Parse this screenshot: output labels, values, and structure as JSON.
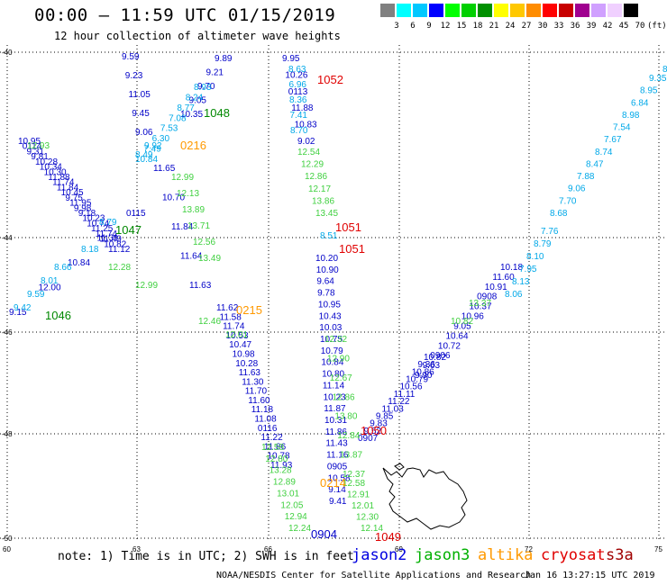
{
  "header": {
    "title": "00:00 – 11:59 UTC 01/15/2019",
    "subtitle": "12 hour collection of altimeter wave heights"
  },
  "legend": {
    "unit": "(ft)",
    "labels": [
      "3",
      "6",
      "9",
      "12",
      "15",
      "18",
      "21",
      "24",
      "27",
      "30",
      "33",
      "36",
      "39",
      "42",
      "45",
      "70"
    ],
    "colors": [
      "#808080",
      "#00ffff",
      "#00c8ff",
      "#0000ff",
      "#00ff00",
      "#00d000",
      "#009000",
      "#ffff00",
      "#ffc800",
      "#ff8c00",
      "#ff0000",
      "#c80000",
      "#a00090",
      "#d0a0ff",
      "#f0d0ff",
      "#000000"
    ]
  },
  "axes": {
    "lat_labels": [
      "-40",
      "-44",
      "-46",
      "-48",
      "-50"
    ],
    "lon_labels": [
      "60",
      "63",
      "66",
      "69",
      "72",
      "75"
    ]
  },
  "track_values": {
    "blue": [
      "9.59",
      "9.23",
      "11.05",
      "9.45",
      "9.06",
      "9.89",
      "9.21",
      "9.70",
      "9.05",
      "10.35",
      "9.95",
      "10.26",
      "0113",
      "11.88",
      "10.83",
      "9.02",
      "10.95",
      "0114",
      "9.31",
      "9.81",
      "10.28",
      "10.34",
      "10.30",
      "11.88",
      "11.74",
      "11.84",
      "10.45",
      "9.75",
      "11.95",
      "9.98",
      "9.18",
      "10.23",
      "10.74",
      "11.25",
      "11.74",
      "11.49",
      "10.82",
      "11.12",
      "9.15",
      "12.00",
      "10.84",
      "11.31",
      "0115",
      "11.65",
      "10.70",
      "11.84",
      "11.64",
      "11.63",
      "11.62",
      "11.58",
      "11.74",
      "10.53",
      "10.47",
      "10.98",
      "10.28",
      "11.63",
      "11.30",
      "11.70",
      "11.60",
      "11.18",
      "11.08",
      "0116",
      "11.22",
      "11.86",
      "10.78",
      "11.93",
      "10.20",
      "10.90",
      "9.64",
      "9.78",
      "10.95",
      "10.43",
      "10.03",
      "10.75",
      "10.79",
      "10.84",
      "10.80",
      "11.14",
      "10.23",
      "11.87",
      "10.31",
      "11.86",
      "11.43",
      "11.16",
      "0905",
      "10.58",
      "9.14",
      "9.41",
      "0907",
      "9.52",
      "9.83",
      "9.85",
      "11.03",
      "11.22",
      "11.11",
      "10.56",
      "10.79",
      "10.86",
      "9.36",
      "10.82",
      "9.90",
      "9.63",
      "0906",
      "10.72",
      "10.64",
      "9.05",
      "10.96",
      "10.37",
      "0908",
      "10.91",
      "11.60",
      "10.18"
    ],
    "cyan": [
      "8.63",
      "6.96",
      "8.36",
      "7.41",
      "8.70",
      "8.93",
      "8.24",
      "8.77",
      "7.08",
      "7.53",
      "6.30",
      "7.49",
      "10.84",
      "8.66",
      "8.01",
      "9.59",
      "9.42",
      "8.18",
      "8.79",
      "8.51",
      "8.06",
      "8.13",
      "7.95",
      "8.10",
      "8.79",
      "7.76",
      "8.68",
      "7.70",
      "9.06",
      "7.88",
      "8.47",
      "8.74",
      "7.67",
      "7.54",
      "8.98",
      "6.84",
      "8.95",
      "9.35",
      "8.49",
      "9.92",
      "8.62",
      "10.03"
    ],
    "green": [
      "12.54",
      "12.29",
      "12.86",
      "12.17",
      "13.86",
      "13.45",
      "12.99",
      "12.13",
      "13.89",
      "13.71",
      "12.56",
      "13.49",
      "12.28",
      "12.99",
      "12.46",
      "12.01",
      "12.32",
      "12.90",
      "12.67",
      "12.86",
      "13.80",
      "12.84",
      "13.87",
      "12.37",
      "12.58",
      "12.80",
      "13.28",
      "12.89",
      "13.01",
      "12.05",
      "12.94",
      "12.24",
      "12.58",
      "12.91",
      "12.01",
      "12.30",
      "12.14",
      "10.82",
      "13.37",
      "12.93"
    ],
    "cycles": [
      "1052",
      "1048",
      "1047",
      "1046",
      "1051",
      "1051",
      "1050",
      "1049",
      "0216",
      "0215",
      "0214",
      "0904"
    ]
  },
  "notes": {
    "note_text": "note: 1) Time is in UTC; 2) SWH is in feet",
    "missions": [
      {
        "name": "jason2",
        "color": "#0000e0"
      },
      {
        "name": "jason3",
        "color": "#00b000"
      },
      {
        "name": "altika",
        "color": "#ff9900"
      },
      {
        "name": "cryosat",
        "color": "#e00000"
      },
      {
        "name": "s3a",
        "color": "#a00000"
      }
    ]
  },
  "footer": {
    "credit": "NOAA/NESDIS Center for Satellite Applications and Research",
    "timestamp": "Jan 16 13:27:15 UTC 2019"
  }
}
